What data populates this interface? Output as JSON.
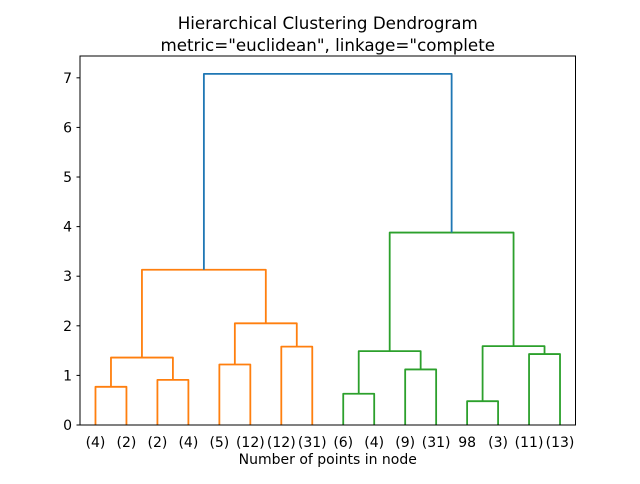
{
  "title": {
    "line1": "Hierarchical Clustering Dendrogram",
    "line2": "metric=\"euclidean\", linkage=\"complete"
  },
  "chart_data": {
    "type": "dendrogram",
    "title": "Hierarchical Clustering Dendrogram",
    "subtitle": "metric=\"euclidean\", linkage=\"complete",
    "xlabel": "Number of points in node",
    "ylabel": "",
    "xlim": [
      0,
      160
    ],
    "ylim": [
      0,
      7.44
    ],
    "yticks": [
      0,
      1,
      2,
      3,
      4,
      5,
      6,
      7
    ],
    "grid": false,
    "legend": null,
    "leaf_labels": [
      "(4)",
      "(2)",
      "(2)",
      "(4)",
      "(5)",
      "(12)",
      "(12)",
      "(31)",
      "(6)",
      "(4)",
      "(9)",
      "(31)",
      "98",
      "(3)",
      "(11)",
      "(13)"
    ],
    "leaf_x": [
      5,
      15,
      25,
      35,
      45,
      55,
      65,
      75,
      85,
      95,
      105,
      115,
      125,
      135,
      145,
      155
    ],
    "colors": {
      "cluster_left": "#ff7f0e",
      "cluster_right": "#2ca02c",
      "root_link": "#1f77b4",
      "axis": "#000000",
      "background": "#ffffff"
    },
    "links": [
      {
        "x1": 5,
        "h1": 0,
        "x2": 15,
        "h2": 0,
        "height": 0.77,
        "color": "#ff7f0e"
      },
      {
        "x1": 25,
        "h1": 0,
        "x2": 35,
        "h2": 0,
        "height": 0.91,
        "color": "#ff7f0e"
      },
      {
        "x1": 10,
        "h1": 0.77,
        "x2": 30,
        "h2": 0.91,
        "height": 1.36,
        "color": "#ff7f0e"
      },
      {
        "x1": 45,
        "h1": 0,
        "x2": 55,
        "h2": 0,
        "height": 1.22,
        "color": "#ff7f0e"
      },
      {
        "x1": 65,
        "h1": 0,
        "x2": 75,
        "h2": 0,
        "height": 1.58,
        "color": "#ff7f0e"
      },
      {
        "x1": 50,
        "h1": 1.22,
        "x2": 70,
        "h2": 1.58,
        "height": 2.05,
        "color": "#ff7f0e"
      },
      {
        "x1": 20,
        "h1": 1.36,
        "x2": 60,
        "h2": 2.05,
        "height": 3.13,
        "color": "#ff7f0e"
      },
      {
        "x1": 85,
        "h1": 0,
        "x2": 95,
        "h2": 0,
        "height": 0.63,
        "color": "#2ca02c"
      },
      {
        "x1": 105,
        "h1": 0,
        "x2": 115,
        "h2": 0,
        "height": 1.12,
        "color": "#2ca02c"
      },
      {
        "x1": 90,
        "h1": 0.63,
        "x2": 110,
        "h2": 1.12,
        "height": 1.49,
        "color": "#2ca02c"
      },
      {
        "x1": 125,
        "h1": 0,
        "x2": 135,
        "h2": 0,
        "height": 0.48,
        "color": "#2ca02c"
      },
      {
        "x1": 145,
        "h1": 0,
        "x2": 155,
        "h2": 0,
        "height": 1.43,
        "color": "#2ca02c"
      },
      {
        "x1": 130,
        "h1": 0.48,
        "x2": 150,
        "h2": 1.43,
        "height": 1.59,
        "color": "#2ca02c"
      },
      {
        "x1": 100,
        "h1": 1.49,
        "x2": 140,
        "h2": 1.59,
        "height": 3.88,
        "color": "#2ca02c"
      },
      {
        "x1": 40,
        "h1": 3.13,
        "x2": 120,
        "h2": 3.88,
        "height": 7.08,
        "color": "#1f77b4"
      }
    ]
  }
}
